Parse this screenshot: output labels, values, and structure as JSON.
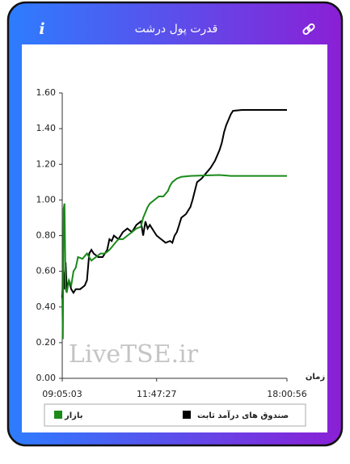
{
  "header": {
    "title": "قدرت پول درشت",
    "info": "i"
  },
  "chart_data": {
    "type": "line",
    "watermark": "LiveTSE.ir",
    "x_label": "زمان",
    "xlim": [
      0,
      100
    ],
    "xticks": [
      {
        "value": 0,
        "label": "09:05:03"
      },
      {
        "value": 42,
        "label": "11:47:27"
      },
      {
        "value": 100,
        "label": "18:00:56"
      }
    ],
    "ylim": [
      0,
      1.6
    ],
    "yticks": [
      {
        "value": 0,
        "label": "0.00"
      },
      {
        "value": 0.2,
        "label": "0.20"
      },
      {
        "value": 0.4,
        "label": "0.40"
      },
      {
        "value": 0.6,
        "label": "0.60"
      },
      {
        "value": 0.8,
        "label": "0.80"
      },
      {
        "value": 1,
        "label": "1.00"
      },
      {
        "value": 1.2,
        "label": "1.20"
      },
      {
        "value": 1.4,
        "label": "1.40"
      },
      {
        "value": 1.6,
        "label": "1.60"
      }
    ],
    "series": [
      {
        "name": "صندوق های درآمد ثابت",
        "color": "#000000",
        "x": [
          0,
          0.5,
          1,
          1.5,
          2,
          3,
          4,
          5,
          6,
          8,
          10,
          11,
          12,
          13,
          14,
          16,
          18,
          20,
          21,
          22,
          23,
          25,
          27,
          29,
          31,
          33,
          35,
          36,
          37,
          38,
          39,
          41,
          42,
          44,
          46,
          48,
          49,
          50,
          51,
          52,
          53,
          55,
          57,
          58,
          59,
          60,
          62,
          64,
          66,
          68,
          70,
          71,
          72,
          73,
          74,
          75,
          76,
          80,
          100
        ],
        "values": [
          0.45,
          0.6,
          0.5,
          0.65,
          0.5,
          0.55,
          0.5,
          0.48,
          0.5,
          0.5,
          0.52,
          0.55,
          0.7,
          0.72,
          0.7,
          0.68,
          0.68,
          0.72,
          0.78,
          0.77,
          0.8,
          0.78,
          0.82,
          0.84,
          0.82,
          0.86,
          0.88,
          0.8,
          0.88,
          0.84,
          0.86,
          0.82,
          0.8,
          0.78,
          0.76,
          0.77,
          0.76,
          0.8,
          0.82,
          0.86,
          0.9,
          0.92,
          0.96,
          1.0,
          1.05,
          1.1,
          1.12,
          1.15,
          1.18,
          1.22,
          1.28,
          1.32,
          1.38,
          1.42,
          1.45,
          1.48,
          1.5,
          1.505,
          1.505
        ]
      },
      {
        "name": "بازار",
        "color": "#1a8a1a",
        "x": [
          0,
          0.3,
          0.6,
          1,
          1.5,
          2,
          3,
          4,
          5,
          6,
          7,
          9,
          11,
          13,
          15,
          17,
          19,
          21,
          23,
          25,
          27,
          29,
          31,
          33,
          35,
          36,
          37,
          38,
          39,
          41,
          43,
          45,
          47,
          48,
          49,
          51,
          53,
          57,
          70,
          75,
          100
        ],
        "values": [
          0.45,
          0.22,
          0.95,
          0.98,
          0.5,
          0.48,
          0.55,
          0.52,
          0.6,
          0.62,
          0.68,
          0.67,
          0.7,
          0.66,
          0.68,
          0.7,
          0.7,
          0.72,
          0.75,
          0.78,
          0.78,
          0.8,
          0.82,
          0.84,
          0.85,
          0.9,
          0.93,
          0.96,
          0.98,
          1.0,
          1.02,
          1.02,
          1.05,
          1.08,
          1.1,
          1.12,
          1.13,
          1.135,
          1.14,
          1.135,
          1.135
        ]
      }
    ]
  }
}
